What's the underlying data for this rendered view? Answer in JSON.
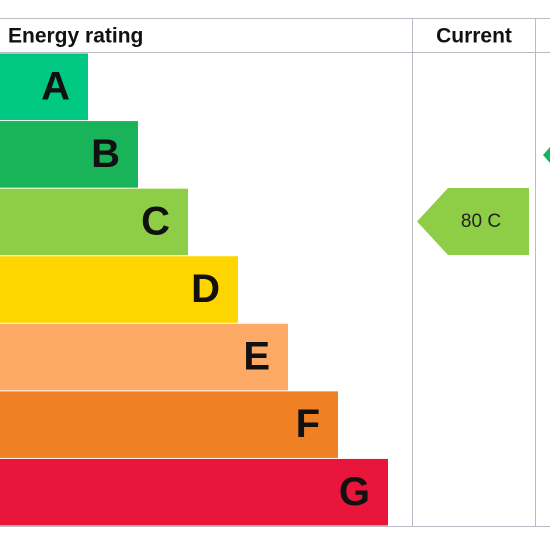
{
  "header": {
    "title": "Energy rating",
    "current": "Current"
  },
  "bands": [
    "A",
    "B",
    "C",
    "D",
    "E",
    "F",
    "G"
  ],
  "current_rating": "80 C"
}
